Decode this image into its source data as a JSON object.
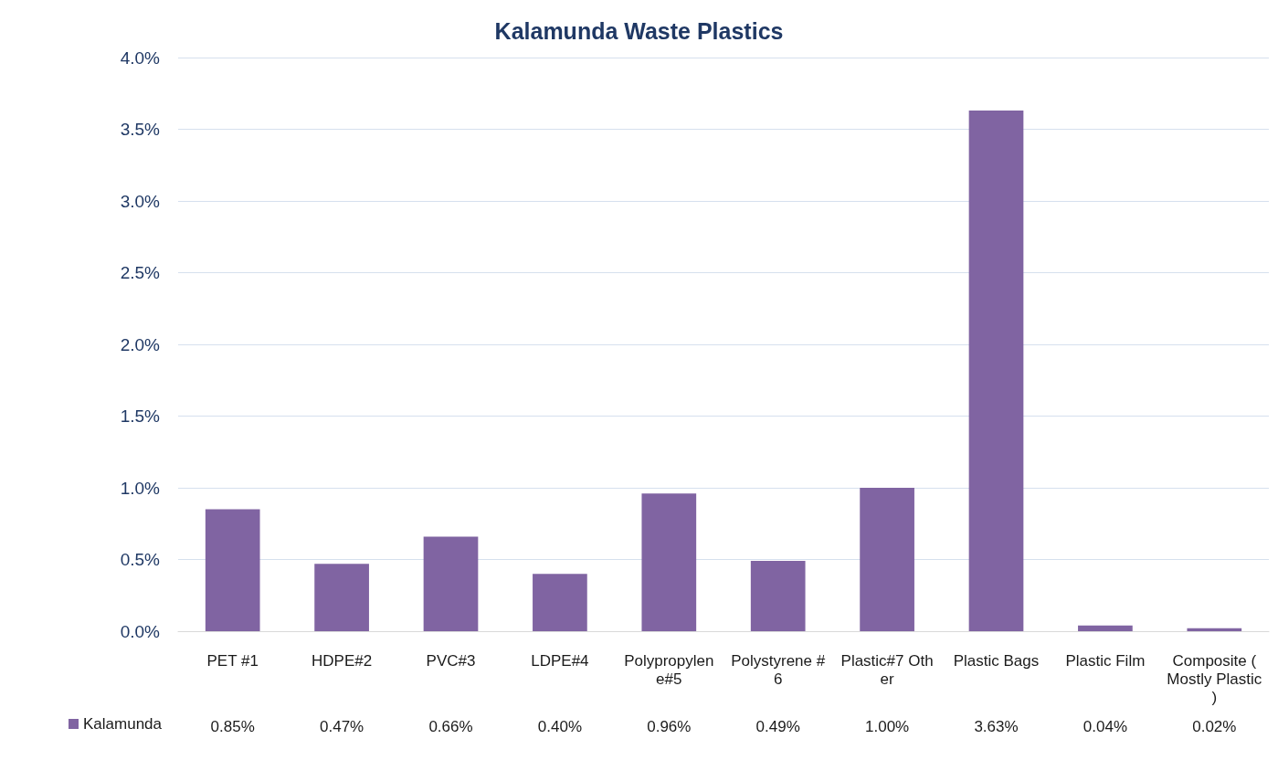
{
  "chart_data": {
    "type": "bar",
    "title": "Kalamunda Waste Plastics",
    "categories": [
      "PET #1",
      "HDPE#2",
      "PVC#3",
      "LDPE#4",
      "Polypropylene#5",
      "Polystyrene #6",
      "Plastic#7 Other",
      "Plastic Bags",
      "Plastic Film",
      "Composite (Mostly Plastic)"
    ],
    "series": [
      {
        "name": "Kalamunda",
        "color": "#8064a2",
        "values": [
          0.85,
          0.47,
          0.66,
          0.4,
          0.96,
          0.49,
          1.0,
          3.63,
          0.04,
          0.02
        ],
        "value_labels": [
          "0.85%",
          "0.47%",
          "0.66%",
          "0.40%",
          "0.96%",
          "0.49%",
          "1.00%",
          "3.63%",
          "0.04%",
          "0.02%"
        ]
      }
    ],
    "ylim": [
      0,
      4
    ],
    "yticks": [
      {
        "value": 0,
        "label": "0.0%"
      },
      {
        "value": 0.5,
        "label": "0.5%"
      },
      {
        "value": 1,
        "label": "1.0%"
      },
      {
        "value": 1.5,
        "label": "1.5%"
      },
      {
        "value": 2,
        "label": "2.0%"
      },
      {
        "value": 2.5,
        "label": "2.5%"
      },
      {
        "value": 3,
        "label": "3.0%"
      },
      {
        "value": 3.5,
        "label": "3.5%"
      },
      {
        "value": 4,
        "label": "4.0%"
      }
    ],
    "grid": "y",
    "legend": "bottom left"
  }
}
